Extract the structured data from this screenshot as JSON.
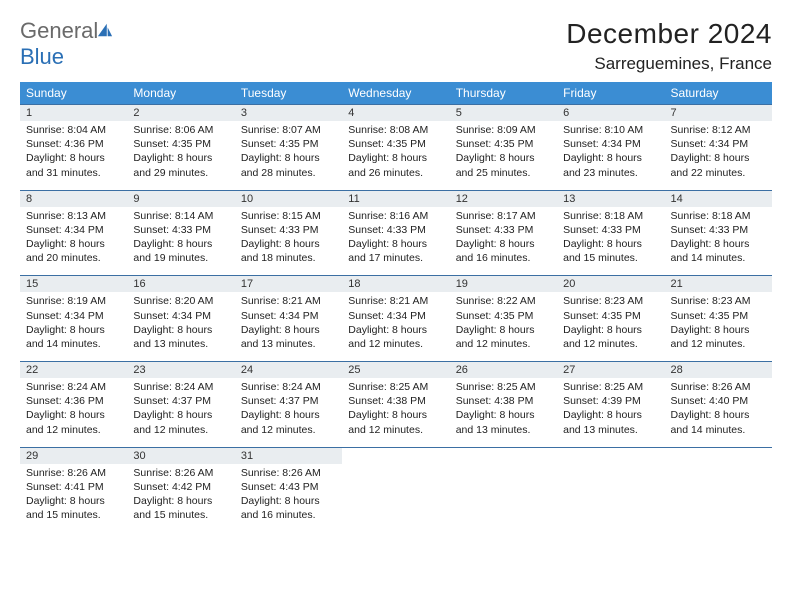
{
  "logo": {
    "word1": "General",
    "word2": "Blue"
  },
  "header": {
    "title": "December 2024",
    "location": "Sarreguemines, France"
  },
  "colors": {
    "header_bg": "#3b8dd3",
    "header_text": "#ffffff",
    "numrow_bg": "#e9edf0",
    "row_border": "#3b6fa3",
    "logo_gray": "#6a6a6a",
    "logo_blue": "#2a6fb5",
    "sail_fill": "#2a6fb5"
  },
  "day_names": [
    "Sunday",
    "Monday",
    "Tuesday",
    "Wednesday",
    "Thursday",
    "Friday",
    "Saturday"
  ],
  "weeks": [
    [
      {
        "num": "1",
        "sunrise": "8:04 AM",
        "sunset": "4:36 PM",
        "daylight": "8 hours and 31 minutes."
      },
      {
        "num": "2",
        "sunrise": "8:06 AM",
        "sunset": "4:35 PM",
        "daylight": "8 hours and 29 minutes."
      },
      {
        "num": "3",
        "sunrise": "8:07 AM",
        "sunset": "4:35 PM",
        "daylight": "8 hours and 28 minutes."
      },
      {
        "num": "4",
        "sunrise": "8:08 AM",
        "sunset": "4:35 PM",
        "daylight": "8 hours and 26 minutes."
      },
      {
        "num": "5",
        "sunrise": "8:09 AM",
        "sunset": "4:35 PM",
        "daylight": "8 hours and 25 minutes."
      },
      {
        "num": "6",
        "sunrise": "8:10 AM",
        "sunset": "4:34 PM",
        "daylight": "8 hours and 23 minutes."
      },
      {
        "num": "7",
        "sunrise": "8:12 AM",
        "sunset": "4:34 PM",
        "daylight": "8 hours and 22 minutes."
      }
    ],
    [
      {
        "num": "8",
        "sunrise": "8:13 AM",
        "sunset": "4:34 PM",
        "daylight": "8 hours and 20 minutes."
      },
      {
        "num": "9",
        "sunrise": "8:14 AM",
        "sunset": "4:33 PM",
        "daylight": "8 hours and 19 minutes."
      },
      {
        "num": "10",
        "sunrise": "8:15 AM",
        "sunset": "4:33 PM",
        "daylight": "8 hours and 18 minutes."
      },
      {
        "num": "11",
        "sunrise": "8:16 AM",
        "sunset": "4:33 PM",
        "daylight": "8 hours and 17 minutes."
      },
      {
        "num": "12",
        "sunrise": "8:17 AM",
        "sunset": "4:33 PM",
        "daylight": "8 hours and 16 minutes."
      },
      {
        "num": "13",
        "sunrise": "8:18 AM",
        "sunset": "4:33 PM",
        "daylight": "8 hours and 15 minutes."
      },
      {
        "num": "14",
        "sunrise": "8:18 AM",
        "sunset": "4:33 PM",
        "daylight": "8 hours and 14 minutes."
      }
    ],
    [
      {
        "num": "15",
        "sunrise": "8:19 AM",
        "sunset": "4:34 PM",
        "daylight": "8 hours and 14 minutes."
      },
      {
        "num": "16",
        "sunrise": "8:20 AM",
        "sunset": "4:34 PM",
        "daylight": "8 hours and 13 minutes."
      },
      {
        "num": "17",
        "sunrise": "8:21 AM",
        "sunset": "4:34 PM",
        "daylight": "8 hours and 13 minutes."
      },
      {
        "num": "18",
        "sunrise": "8:21 AM",
        "sunset": "4:34 PM",
        "daylight": "8 hours and 12 minutes."
      },
      {
        "num": "19",
        "sunrise": "8:22 AM",
        "sunset": "4:35 PM",
        "daylight": "8 hours and 12 minutes."
      },
      {
        "num": "20",
        "sunrise": "8:23 AM",
        "sunset": "4:35 PM",
        "daylight": "8 hours and 12 minutes."
      },
      {
        "num": "21",
        "sunrise": "8:23 AM",
        "sunset": "4:35 PM",
        "daylight": "8 hours and 12 minutes."
      }
    ],
    [
      {
        "num": "22",
        "sunrise": "8:24 AM",
        "sunset": "4:36 PM",
        "daylight": "8 hours and 12 minutes."
      },
      {
        "num": "23",
        "sunrise": "8:24 AM",
        "sunset": "4:37 PM",
        "daylight": "8 hours and 12 minutes."
      },
      {
        "num": "24",
        "sunrise": "8:24 AM",
        "sunset": "4:37 PM",
        "daylight": "8 hours and 12 minutes."
      },
      {
        "num": "25",
        "sunrise": "8:25 AM",
        "sunset": "4:38 PM",
        "daylight": "8 hours and 12 minutes."
      },
      {
        "num": "26",
        "sunrise": "8:25 AM",
        "sunset": "4:38 PM",
        "daylight": "8 hours and 13 minutes."
      },
      {
        "num": "27",
        "sunrise": "8:25 AM",
        "sunset": "4:39 PM",
        "daylight": "8 hours and 13 minutes."
      },
      {
        "num": "28",
        "sunrise": "8:26 AM",
        "sunset": "4:40 PM",
        "daylight": "8 hours and 14 minutes."
      }
    ],
    [
      {
        "num": "29",
        "sunrise": "8:26 AM",
        "sunset": "4:41 PM",
        "daylight": "8 hours and 15 minutes."
      },
      {
        "num": "30",
        "sunrise": "8:26 AM",
        "sunset": "4:42 PM",
        "daylight": "8 hours and 15 minutes."
      },
      {
        "num": "31",
        "sunrise": "8:26 AM",
        "sunset": "4:43 PM",
        "daylight": "8 hours and 16 minutes."
      },
      null,
      null,
      null,
      null
    ]
  ],
  "labels": {
    "sunrise": "Sunrise: ",
    "sunset": "Sunset: ",
    "daylight": "Daylight: "
  }
}
